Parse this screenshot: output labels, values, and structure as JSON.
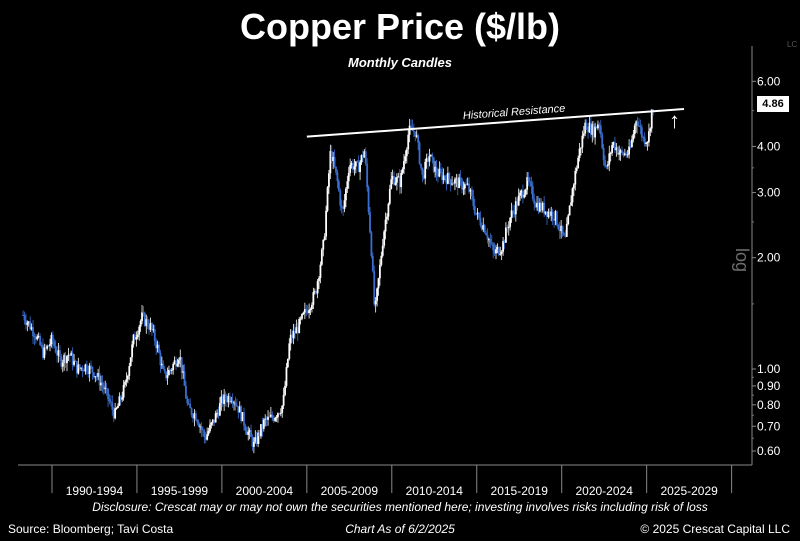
{
  "title": "Copper Price ($/lb)",
  "subtitle": "Monthly Candles",
  "footer": {
    "disclosure": "Disclosure: Crescat may or may not own the securities mentioned here; investing involves risks including risk of loss",
    "source": "Source: Bloomberg; Tavi Costa",
    "as_of": "Chart As of 6/2/2025",
    "copyright": "© 2025 Crescat Capital LLC"
  },
  "price_badge": "4.86",
  "scale_label": "log",
  "corner_label": "LC",
  "colors": {
    "background": "#000000",
    "candle_up": "#ffffff",
    "candle_down": "#3a6fd1",
    "text": "#ffffff"
  },
  "icons": {
    "arrow": "up-arrow-icon"
  },
  "chart_data": {
    "type": "line",
    "scale": "log",
    "ylim": [
      0.55,
      6.6
    ],
    "yticks": [
      0.6,
      0.7,
      0.8,
      0.9,
      1.0,
      2.0,
      3.0,
      4.0,
      6.0
    ],
    "ytick_labels": [
      "0.60",
      "0.70",
      "0.80",
      "0.90",
      "1.00",
      "2.00",
      "3.00",
      "4.00",
      "6.00"
    ],
    "xlim": [
      1988.0,
      2031.2
    ],
    "x_periods": [
      {
        "label": "1990-1994",
        "start": 1990,
        "end": 1995
      },
      {
        "label": "1995-1999",
        "start": 1995,
        "end": 2000
      },
      {
        "label": "2000-2004",
        "start": 2000,
        "end": 2005
      },
      {
        "label": "2005-2009",
        "start": 2005,
        "end": 2010
      },
      {
        "label": "2010-2014",
        "start": 2010,
        "end": 2015
      },
      {
        "label": "2015-2019",
        "start": 2015,
        "end": 2020
      },
      {
        "label": "2020-2024",
        "start": 2020,
        "end": 2025
      },
      {
        "label": "2025-2029",
        "start": 2025,
        "end": 2030
      }
    ],
    "series": [
      {
        "values": [
          [
            1988.3,
            1.4
          ],
          [
            1989.0,
            1.25
          ],
          [
            1989.5,
            1.1
          ],
          [
            1990.0,
            1.2
          ],
          [
            1990.5,
            1.05
          ],
          [
            1991.0,
            1.1
          ],
          [
            1991.5,
            1.0
          ],
          [
            1992.0,
            1.02
          ],
          [
            1992.5,
            0.98
          ],
          [
            1993.0,
            0.9
          ],
          [
            1993.7,
            0.75
          ],
          [
            1994.3,
            0.9
          ],
          [
            1994.8,
            1.2
          ],
          [
            1995.3,
            1.38
          ],
          [
            1995.8,
            1.3
          ],
          [
            1996.2,
            1.15
          ],
          [
            1996.6,
            0.95
          ],
          [
            1997.0,
            1.0
          ],
          [
            1997.5,
            1.1
          ],
          [
            1998.0,
            0.78
          ],
          [
            1998.5,
            0.75
          ],
          [
            1999.0,
            0.65
          ],
          [
            1999.5,
            0.72
          ],
          [
            2000.0,
            0.82
          ],
          [
            2000.6,
            0.85
          ],
          [
            2001.0,
            0.78
          ],
          [
            2001.5,
            0.68
          ],
          [
            2001.9,
            0.62
          ],
          [
            2002.5,
            0.72
          ],
          [
            2003.0,
            0.74
          ],
          [
            2003.6,
            0.8
          ],
          [
            2004.0,
            1.2
          ],
          [
            2004.5,
            1.3
          ],
          [
            2005.0,
            1.45
          ],
          [
            2005.5,
            1.6
          ],
          [
            2006.0,
            2.2
          ],
          [
            2006.4,
            3.9
          ],
          [
            2006.8,
            3.2
          ],
          [
            2007.1,
            2.6
          ],
          [
            2007.5,
            3.6
          ],
          [
            2008.0,
            3.5
          ],
          [
            2008.4,
            3.9
          ],
          [
            2008.8,
            2.1
          ],
          [
            2009.0,
            1.4
          ],
          [
            2009.5,
            2.3
          ],
          [
            2010.0,
            3.3
          ],
          [
            2010.5,
            3.2
          ],
          [
            2011.0,
            4.4
          ],
          [
            2011.4,
            4.4
          ],
          [
            2011.8,
            3.3
          ],
          [
            2012.2,
            3.8
          ],
          [
            2012.6,
            3.4
          ],
          [
            2013.2,
            3.3
          ],
          [
            2013.8,
            3.2
          ],
          [
            2014.5,
            3.1
          ],
          [
            2015.0,
            2.6
          ],
          [
            2015.5,
            2.4
          ],
          [
            2016.0,
            2.05
          ],
          [
            2016.5,
            2.15
          ],
          [
            2017.0,
            2.6
          ],
          [
            2017.5,
            2.9
          ],
          [
            2018.0,
            3.2
          ],
          [
            2018.5,
            2.8
          ],
          [
            2019.0,
            2.7
          ],
          [
            2019.6,
            2.6
          ],
          [
            2020.2,
            2.2
          ],
          [
            2020.6,
            3.0
          ],
          [
            2021.0,
            3.8
          ],
          [
            2021.4,
            4.6
          ],
          [
            2021.9,
            4.4
          ],
          [
            2022.2,
            4.7
          ],
          [
            2022.6,
            3.4
          ],
          [
            2023.0,
            4.1
          ],
          [
            2023.5,
            3.8
          ],
          [
            2024.0,
            3.85
          ],
          [
            2024.4,
            4.8
          ],
          [
            2024.8,
            4.2
          ],
          [
            2025.1,
            4.2
          ],
          [
            2025.3,
            5.0
          ],
          [
            2025.42,
            4.86
          ]
        ]
      }
    ],
    "annotations": [
      {
        "text": "Historical Resistance",
        "from": [
          2005.0,
          4.25
        ],
        "to": [
          2027.2,
          5.05
        ]
      }
    ]
  }
}
